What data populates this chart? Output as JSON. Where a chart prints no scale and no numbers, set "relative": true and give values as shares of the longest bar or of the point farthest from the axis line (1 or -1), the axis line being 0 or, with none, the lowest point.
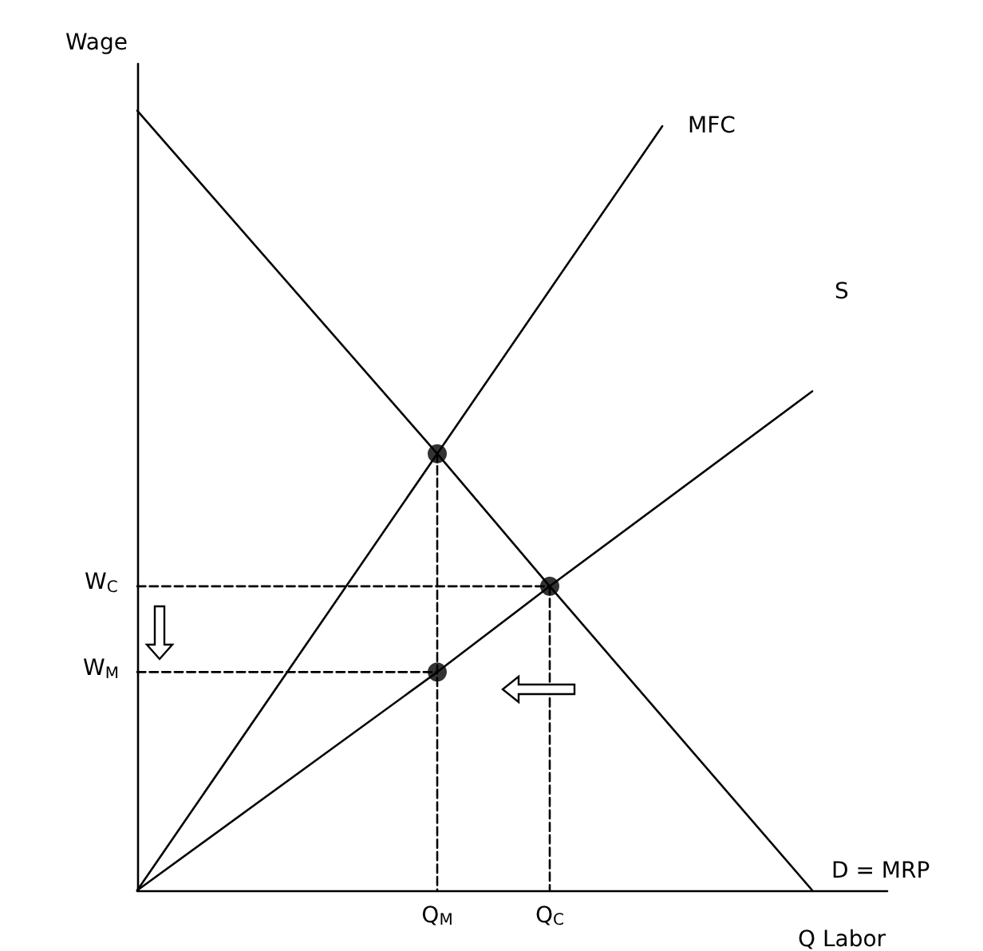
{
  "chart_data": {
    "type": "line",
    "xlabel": "Q Labor",
    "ylabel": "Wage",
    "relative": true,
    "categories": [
      null,
      null,
      null,
      null,
      null,
      null,
      null,
      null,
      "Q$_{M}$",
      null,
      null,
      "Q$_{C}$",
      null,
      null,
      null,
      null,
      null,
      null,
      null,
      null,
      null
    ],
    "annotations": [
      "W$_{C}$",
      "W$_{M}$"
    ],
    "grid": false,
    "legend": false,
    "marker": "none",
    "line_style": "solid",
    "series": [
      {
        "name": "MFC",
        "color": "#000000",
        "values": [
          0,
          null,
          null,
          null,
          null,
          null,
          null,
          null,
          0.56,
          null,
          null,
          null,
          null,
          null,
          0.98,
          null,
          null,
          null,
          null,
          null,
          null
        ]
      },
      {
        "name": "S",
        "color": "#000000",
        "values": [
          0,
          null,
          null,
          null,
          null,
          null,
          null,
          null,
          0.28,
          null,
          null,
          0.39,
          null,
          null,
          null,
          null,
          null,
          null,
          0.64,
          null,
          null
        ]
      },
      {
        "name": "D = MRP",
        "color": "#000000",
        "values": [
          1,
          null,
          null,
          null,
          null,
          null,
          null,
          null,
          0.56,
          null,
          null,
          0.39,
          null,
          null,
          null,
          null,
          null,
          null,
          0,
          null,
          null
        ]
      },
      {
        "color": "#000000",
        "line_style": "dashed",
        "values": [
          0.39,
          null,
          null,
          null,
          null,
          null,
          null,
          null,
          null,
          null,
          null,
          0.39,
          null,
          null,
          null,
          null,
          null,
          null,
          null,
          null,
          null
        ]
      },
      {
        "color": "#000000",
        "line_style": "dashed",
        "values": [
          0.28,
          null,
          null,
          null,
          null,
          null,
          null,
          null,
          0.28,
          null,
          null,
          null,
          null,
          null,
          null,
          null,
          null,
          null,
          null,
          null,
          null
        ]
      },
      {
        "color": "#000000",
        "line_style": "dashed",
        "x": [
          "Q$_{M}$",
          "Q$_{M}$"
        ],
        "values": [
          0.56,
          0
        ]
      },
      {
        "color": "#000000",
        "line_style": "dashed",
        "x": [
          "Q$_{C}$",
          "Q$_{C}$"
        ],
        "values": [
          0.39,
          0
        ]
      },
      {
        "type": "scatter",
        "marker": "circle",
        "color": "#000000",
        "x": [
          "Q$_{M}$",
          "Q$_{C}$",
          "Q$_{M}$"
        ],
        "values": [
          0.56,
          0.39,
          0.28
        ]
      }
    ]
  }
}
